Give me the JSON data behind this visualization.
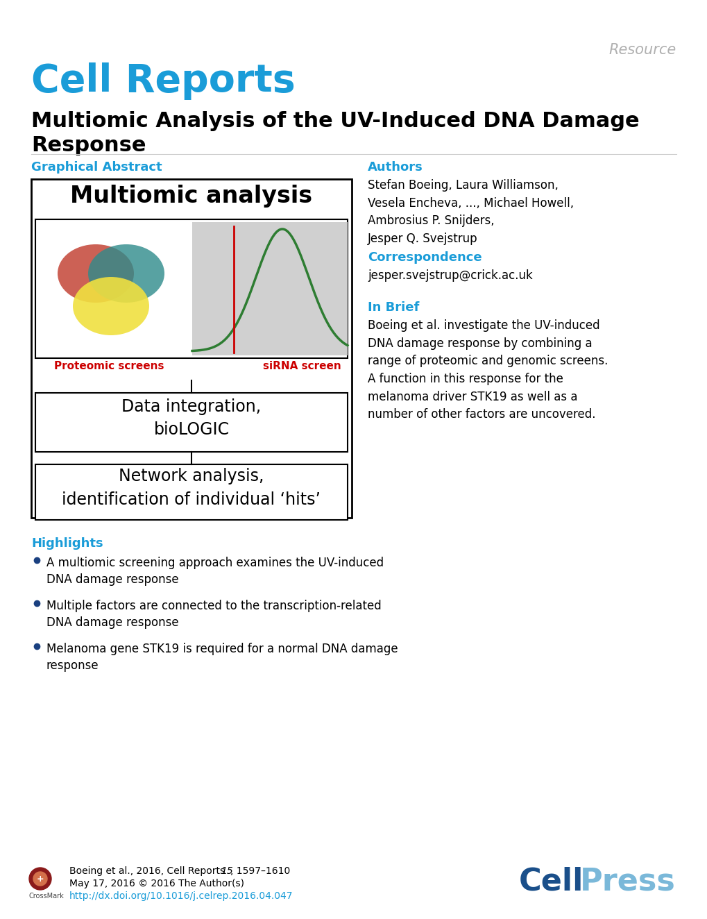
{
  "bg_color": "#ffffff",
  "resource_text": "Resource",
  "resource_color": "#b0b0b0",
  "journal_color": "#1a9cd8",
  "title_color": "#000000",
  "section_color": "#1a9cd8",
  "graphical_abstract_label": "Graphical Abstract",
  "authors_label": "Authors",
  "authors_text": "Stefan Boeing, Laura Williamson,\nVesela Encheva, ..., Michael Howell,\nAmbrosius P. Snijders,\nJesper Q. Svejstrup",
  "correspondence_label": "Correspondence",
  "correspondence_text": "jesper.svejstrup@crick.ac.uk",
  "inbrief_label": "In Brief",
  "inbrief_text": "Boeing et al. investigate the UV-induced\nDNA damage response by combining a\nrange of proteomic and genomic screens.\nA function in this response for the\nmelanoma driver STK19 as well as a\nnumber of other factors are uncovered.",
  "highlights_label": "Highlights",
  "highlights": [
    "A multiomic screening approach examines the UV-induced\nDNA damage response",
    "Multiple factors are connected to the transcription-related\nDNA damage response",
    "Melanoma gene STK19 is required for a normal DNA damage\nresponse"
  ],
  "footer_line2": "May 17, 2016 © 2016 The Author(s)",
  "footer_link": "http://dx.doi.org/10.1016/j.celrep.2016.04.047",
  "footer_link_color": "#1a9cd8",
  "cellpress_cell_color": "#1a4f8a",
  "cellpress_press_color": "#7ab8d9",
  "ga_title": "Multiomic analysis",
  "venn_red": "#c0392b",
  "venn_teal": "#2e8b8b",
  "venn_yellow": "#f0e040",
  "curve_color": "#2e7d32",
  "redline_color": "#cc0000",
  "proteomic_label_color": "#cc0000",
  "sirna_label_color": "#cc0000",
  "data_integration_text": "Data integration,\nbioLOGIC",
  "network_text": "Network analysis,\nidentification of individual ‘hits’"
}
